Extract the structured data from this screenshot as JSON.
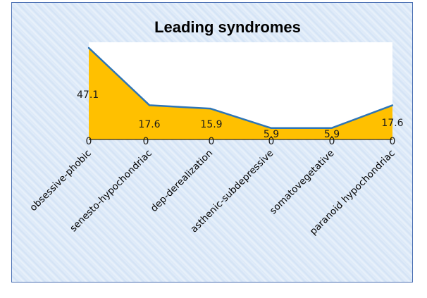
{
  "chart_data": {
    "type": "area",
    "title": "Leading syndromes",
    "categories": [
      "obsessive-phobic",
      "senesto-hypochondriac",
      "dep-derealization",
      "asthenic-subdepressive",
      "somatovegetative",
      "paranoid hypochondriac"
    ],
    "series": [
      {
        "values": [
          47.1,
          17.6,
          15.9,
          5.9,
          5.9,
          17.6
        ],
        "value_labels": [
          "47.1",
          "17.6",
          "15.9",
          "5.9",
          "5.9",
          "17.6"
        ]
      },
      {
        "values": [
          0,
          0,
          0,
          0,
          0,
          0
        ],
        "value_labels": [
          "0",
          "0",
          "0",
          "0",
          "0",
          "0"
        ]
      }
    ],
    "ylim": [
      0,
      47.1
    ],
    "grid": false,
    "colors": {
      "fill": "#ffc000",
      "line": "#2e75b6",
      "plot_bg": "#ffffff",
      "frame_border": "#4a6fb3"
    }
  }
}
